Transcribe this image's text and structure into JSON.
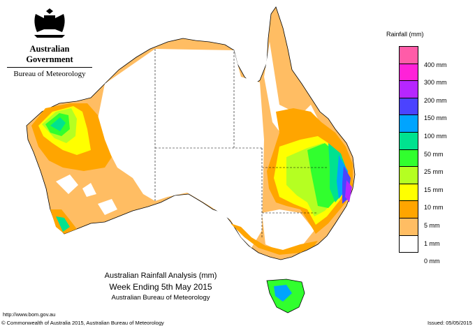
{
  "branding": {
    "government": "Australian Government",
    "bureau": "Bureau of Meteorology"
  },
  "legend": {
    "title": "Rainfall (mm)",
    "bins": [
      {
        "label": "",
        "color": "#ff5ca8"
      },
      {
        "label": "400 mm",
        "color": "#ff22d8"
      },
      {
        "label": "300 mm",
        "color": "#b626ff"
      },
      {
        "label": "200 mm",
        "color": "#4b43ff"
      },
      {
        "label": "150 mm",
        "color": "#00a4ff"
      },
      {
        "label": "100 mm",
        "color": "#00e28f"
      },
      {
        "label": "50 mm",
        "color": "#31ff2e"
      },
      {
        "label": "25 mm",
        "color": "#b5ff22"
      },
      {
        "label": "15 mm",
        "color": "#ffff00"
      },
      {
        "label": "10 mm",
        "color": "#ffa500"
      },
      {
        "label": "5 mm",
        "color": "#ffbd63"
      },
      {
        "label": "1 mm",
        "color": "#ffffff"
      },
      {
        "label": "0 mm",
        "color": ""
      }
    ]
  },
  "map": {
    "title": "Australian Rainfall Analysis (mm)",
    "subtitle": "Week Ending 5th May 2015",
    "credit": "Australian Bureau of Meteorology"
  },
  "footer": {
    "url": "http://www.bom.gov.au",
    "copyright": "© Commonwealth of Australia 2015, Australian Bureau of Meteorology",
    "issued": "Issued: 05/05/2015"
  }
}
